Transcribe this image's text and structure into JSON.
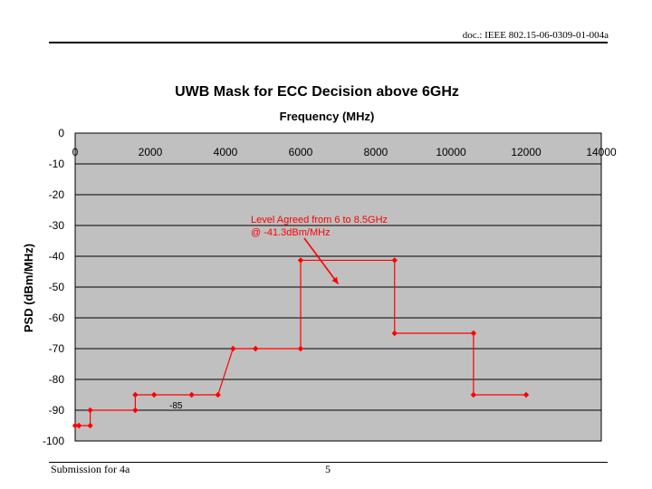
{
  "header": {
    "doc_ref": "doc.: IEEE 802.15-06-0309-01-004a"
  },
  "footer": {
    "left": "Submission for 4a",
    "page": "5"
  },
  "colors": {
    "plot_bg": "#c0c0c0",
    "series": "#ff0000",
    "grid": "#000000"
  },
  "chart_data": {
    "type": "line",
    "title": "UWB Mask for ECC Decision above 6GHz",
    "xlabel": "Frequency (MHz)",
    "ylabel": "PSD (dBm/MHz)",
    "xlim": [
      0,
      14000
    ],
    "ylim": [
      -100,
      0
    ],
    "x_axis_position": "top",
    "xticks": [
      0,
      2000,
      4000,
      6000,
      8000,
      10000,
      12000,
      14000
    ],
    "yticks": [
      0,
      -10,
      -20,
      -30,
      -40,
      -50,
      -60,
      -70,
      -80,
      -90,
      -100
    ],
    "grid": "horizontal",
    "series": [
      {
        "points": [
          [
            0,
            -95
          ],
          [
            100,
            -95
          ],
          [
            400,
            -95
          ],
          [
            400,
            -90
          ],
          [
            1600,
            -90
          ],
          [
            1600,
            -85
          ],
          [
            2100,
            -85
          ],
          [
            3100,
            -85
          ],
          [
            3800,
            -85
          ],
          [
            4200,
            -70
          ],
          [
            4800,
            -70
          ],
          [
            6000,
            -70
          ],
          [
            6000,
            -41.3
          ],
          [
            8500,
            -41.3
          ],
          [
            8500,
            -65
          ],
          [
            10600,
            -65
          ],
          [
            10600,
            -85
          ],
          [
            12000,
            -85
          ]
        ]
      }
    ],
    "annotations": [
      {
        "text_lines": [
          "Level Agreed from 6 to 8.5GHz",
          "@ -41.3dBm/MHz"
        ],
        "target": [
          7000,
          -49
        ]
      }
    ],
    "data_labels": [
      {
        "text": "-85",
        "x": 2400,
        "y": -89
      }
    ]
  }
}
